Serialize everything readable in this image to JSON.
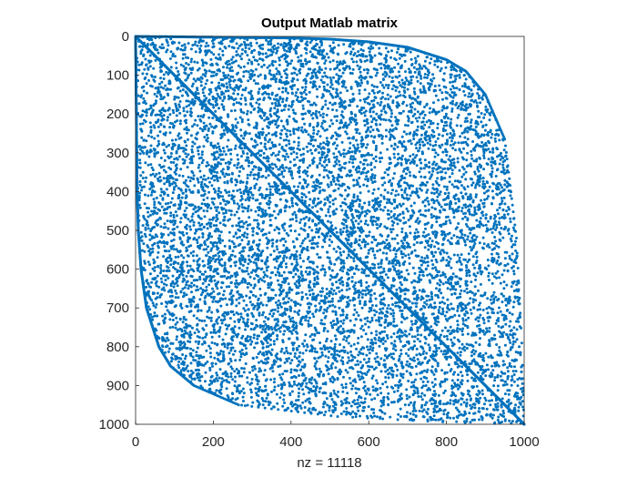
{
  "chart_data": {
    "type": "scatter",
    "title": "Output Matlab matrix",
    "xlabel": "nz = 11118",
    "ylabel": "",
    "xlim": [
      0,
      1000
    ],
    "ylim": [
      0,
      1000
    ],
    "y_axis_reversed": true,
    "x_ticks": [
      "0",
      "200",
      "400",
      "600",
      "800",
      "1000"
    ],
    "y_ticks": [
      "0",
      "100",
      "200",
      "300",
      "400",
      "500",
      "600",
      "700",
      "800",
      "900",
      "1000"
    ],
    "nonzeros": 11118,
    "marker_color": "#0072BD",
    "grid": false,
    "legend": "none",
    "structure": {
      "diagonal": "nonzeros along the main diagonal from (0,0) to (1000,1000)",
      "upper_envelope": [
        [
          0,
          0
        ],
        [
          100,
          1
        ],
        [
          200,
          2
        ],
        [
          300,
          3
        ],
        [
          400,
          4
        ],
        [
          500,
          7
        ],
        [
          600,
          14
        ],
        [
          700,
          28
        ],
        [
          800,
          60
        ],
        [
          850,
          90
        ],
        [
          900,
          150
        ],
        [
          950,
          265
        ],
        [
          980,
          520
        ],
        [
          995,
          810
        ],
        [
          1000,
          1000
        ]
      ],
      "lower_envelope": [
        [
          0,
          0
        ],
        [
          1,
          100
        ],
        [
          2,
          200
        ],
        [
          3,
          300
        ],
        [
          4,
          400
        ],
        [
          7,
          500
        ],
        [
          14,
          600
        ],
        [
          28,
          700
        ],
        [
          60,
          800
        ],
        [
          90,
          850
        ],
        [
          150,
          900
        ],
        [
          265,
          950
        ],
        [
          520,
          980
        ],
        [
          810,
          995
        ],
        [
          1000,
          1000
        ]
      ]
    }
  }
}
